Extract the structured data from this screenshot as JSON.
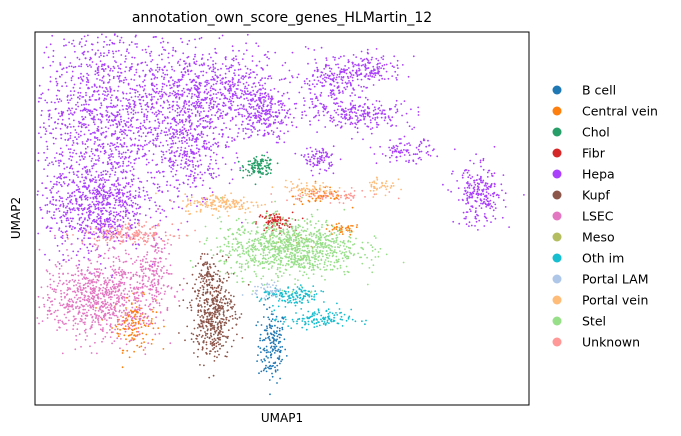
{
  "chart_data": {
    "type": "scatter",
    "title": "annotation_own_score_genes_HLMartin_12",
    "xlabel": "UMAP1",
    "ylabel": "UMAP2",
    "grid": false,
    "legend_placement": "right",
    "xlim": [
      0,
      100
    ],
    "ylim": [
      0,
      100
    ],
    "series": [
      {
        "name": "B cell",
        "color": "#1f77b4",
        "clusters": [
          {
            "x": 48.0,
            "y": 16.0,
            "sx": 1.4,
            "sy": 5.0,
            "n": 170
          }
        ]
      },
      {
        "name": "Central vein",
        "color": "#ff7f0e",
        "clusters": [
          {
            "x": 20.0,
            "y": 22.0,
            "sx": 2.2,
            "sy": 3.5,
            "n": 140
          },
          {
            "x": 58.0,
            "y": 56.0,
            "sx": 2.8,
            "sy": 1.2,
            "n": 60
          },
          {
            "x": 62.0,
            "y": 47.0,
            "sx": 2.0,
            "sy": 0.8,
            "n": 40
          }
        ]
      },
      {
        "name": "Chol",
        "color": "#279e68",
        "clusters": [
          {
            "x": 45.5,
            "y": 64.0,
            "sx": 1.5,
            "sy": 1.2,
            "n": 120
          }
        ]
      },
      {
        "name": "Fibr",
        "color": "#d62728",
        "clusters": [
          {
            "x": 48.5,
            "y": 49.0,
            "sx": 1.8,
            "sy": 1.3,
            "n": 90
          }
        ]
      },
      {
        "name": "Hepa",
        "color": "#aa40fc",
        "clusters": [
          {
            "x": 15.0,
            "y": 77.0,
            "sx": 9.5,
            "sy": 13.0,
            "n": 1500
          },
          {
            "x": 12.5,
            "y": 53.0,
            "sx": 5.0,
            "sy": 6.0,
            "n": 700
          },
          {
            "x": 36.5,
            "y": 84.0,
            "sx": 8.0,
            "sy": 5.5,
            "n": 700
          },
          {
            "x": 32.0,
            "y": 69.0,
            "sx": 3.5,
            "sy": 6.0,
            "n": 300
          },
          {
            "x": 46.5,
            "y": 78.0,
            "sx": 2.5,
            "sy": 3.5,
            "n": 200
          },
          {
            "x": 60.0,
            "y": 86.0,
            "sx": 3.5,
            "sy": 3.5,
            "n": 200
          },
          {
            "x": 66.0,
            "y": 78.0,
            "sx": 5.5,
            "sy": 2.0,
            "n": 220
          },
          {
            "x": 68.0,
            "y": 90.0,
            "sx": 3.5,
            "sy": 2.0,
            "n": 140
          },
          {
            "x": 57.5,
            "y": 66.0,
            "sx": 1.6,
            "sy": 1.6,
            "n": 90
          },
          {
            "x": 75.0,
            "y": 68.0,
            "sx": 2.8,
            "sy": 1.6,
            "n": 90
          },
          {
            "x": 90.0,
            "y": 56.0,
            "sx": 2.5,
            "sy": 4.0,
            "n": 240
          }
        ]
      },
      {
        "name": "Kupf",
        "color": "#8c564b",
        "clusters": [
          {
            "x": 36.0,
            "y": 25.0,
            "sx": 2.2,
            "sy": 6.0,
            "n": 500
          },
          {
            "x": 34.5,
            "y": 36.0,
            "sx": 1.0,
            "sy": 2.0,
            "n": 40
          }
        ]
      },
      {
        "name": "LSEC",
        "color": "#e377c2",
        "clusters": [
          {
            "x": 13.5,
            "y": 29.0,
            "sx": 6.0,
            "sy": 5.5,
            "n": 900
          },
          {
            "x": 24.5,
            "y": 37.0,
            "sx": 1.6,
            "sy": 4.5,
            "n": 120
          }
        ]
      },
      {
        "name": "Meso",
        "color": "#b5bd61",
        "clusters": [
          {
            "x": 53.0,
            "y": 44.0,
            "sx": 2.5,
            "sy": 2.0,
            "n": 30
          }
        ]
      },
      {
        "name": "Oth im",
        "color": "#17becf",
        "clusters": [
          {
            "x": 52.0,
            "y": 29.0,
            "sx": 3.0,
            "sy": 1.3,
            "n": 140
          },
          {
            "x": 57.0,
            "y": 23.0,
            "sx": 3.5,
            "sy": 1.3,
            "n": 130
          }
        ]
      },
      {
        "name": "Portal LAM",
        "color": "#aec7e8",
        "clusters": [
          {
            "x": 47.0,
            "y": 31.0,
            "sx": 1.5,
            "sy": 1.0,
            "n": 40
          }
        ]
      },
      {
        "name": "Portal vein",
        "color": "#ffbb78",
        "clusters": [
          {
            "x": 38.0,
            "y": 54.0,
            "sx": 4.0,
            "sy": 1.3,
            "n": 160
          },
          {
            "x": 70.0,
            "y": 59.0,
            "sx": 1.5,
            "sy": 1.5,
            "n": 40
          },
          {
            "x": 55.0,
            "y": 58.0,
            "sx": 3.0,
            "sy": 1.0,
            "n": 60
          }
        ]
      },
      {
        "name": "Stel",
        "color": "#98df8a",
        "clusters": [
          {
            "x": 51.5,
            "y": 42.0,
            "sx": 7.0,
            "sy": 3.8,
            "n": 1000
          }
        ]
      },
      {
        "name": "Unknown",
        "color": "#ff9896",
        "clusters": [
          {
            "x": 19.0,
            "y": 46.0,
            "sx": 4.5,
            "sy": 1.3,
            "n": 180
          },
          {
            "x": 60.0,
            "y": 56.0,
            "sx": 5.0,
            "sy": 0.8,
            "n": 60
          }
        ]
      }
    ]
  }
}
